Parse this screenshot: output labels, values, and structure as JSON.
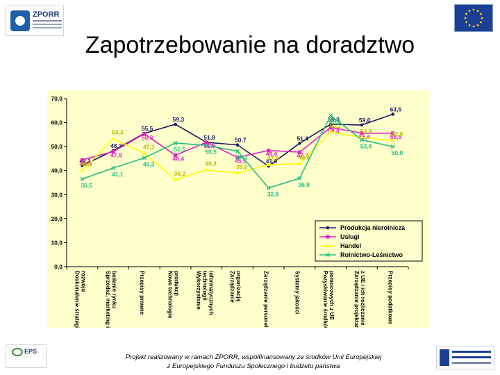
{
  "header": {
    "logo_left_text": "ZPORR",
    "title": "Zapotrzebowanie na doradztwo"
  },
  "chart_data": {
    "type": "line",
    "title": "",
    "xlabel": "",
    "ylabel": "",
    "ylim": [
      0,
      70
    ],
    "yticks": [
      "0,0",
      "10,0",
      "20,0",
      "30,0",
      "40,0",
      "50,0",
      "60,0",
      "70,0"
    ],
    "grid": false,
    "legend_position": "bottom-right",
    "categories": [
      "Doskonalenie strategii rozwoju",
      "Sprzedaż, marketing i badanie rynku",
      "Przepisy prawne",
      "Nowe technologie produkcji",
      "Wykorzystanie technologii informatycznych",
      "Zarządzanie organizacją",
      "Zarządzanie personelem",
      "Systemy jakości",
      "Pozyskiwanie środków pomocowych z UE",
      "Zarządzanie projektami z UE i ich rozliczanie",
      "Przepisy podatkowe"
    ],
    "series": [
      {
        "name": "Produkcja nierolnicza",
        "color": "#1a1a66",
        "values": [
          42.1,
          48.3,
          55.5,
          59.3,
          51.8,
          50.7,
          41.9,
          51.4,
          59.3,
          59.0,
          63.5
        ],
        "labels": [
          "42,1",
          "48,3",
          "55,5",
          "59,3",
          "51,8",
          "50,7",
          "41,9",
          "51,4",
          "59,3",
          "59,0",
          "63,5"
        ]
      },
      {
        "name": "Usługi",
        "color": "#e020c0",
        "values": [
          44.5,
          47.9,
          55.3,
          46.4,
          51.8,
          45.5,
          48.4,
          47.7,
          58.0,
          55.6,
          55.6
        ],
        "labels": [
          "44,5",
          "47,9",
          "55,3",
          "46,4",
          "51,8",
          "45,5",
          "48,4",
          "47,7",
          "58,0",
          "55,6",
          "55,6"
        ]
      },
      {
        "name": "Handel",
        "color": "#ffff00",
        "values": [
          40.0,
          53.3,
          47.3,
          36.2,
          40.3,
          39.0,
          42.5,
          42.9,
          56.1,
          53.8,
          52.6
        ],
        "labels": [
          "40,0",
          "53,3",
          "47,3",
          "36,2",
          "40,3",
          "39,0",
          "42,5",
          "42,9",
          "56,1",
          "53,8",
          "52,6"
        ]
      },
      {
        "name": "Rolnictwo-Leśnictwo",
        "color": "#20c080",
        "values": [
          36.5,
          41.1,
          45.3,
          51.5,
          50.5,
          48.1,
          32.8,
          36.8,
          63.0,
          52.8,
          50.0
        ],
        "labels": [
          "36,5",
          "41,1",
          "45,3",
          "51,5",
          "50,5",
          "48,1",
          "32,8",
          "36,8",
          "63,0",
          "52,8",
          "50,0"
        ]
      }
    ]
  },
  "footer": {
    "logo_left_text": "EPS",
    "line1": "Projekt realizowany w ramach ZPORR, współfinansowany ze środków Unii Europejskiej",
    "line2": "z Europejskiego Funduszu Społecznego i budżetu państwa"
  }
}
